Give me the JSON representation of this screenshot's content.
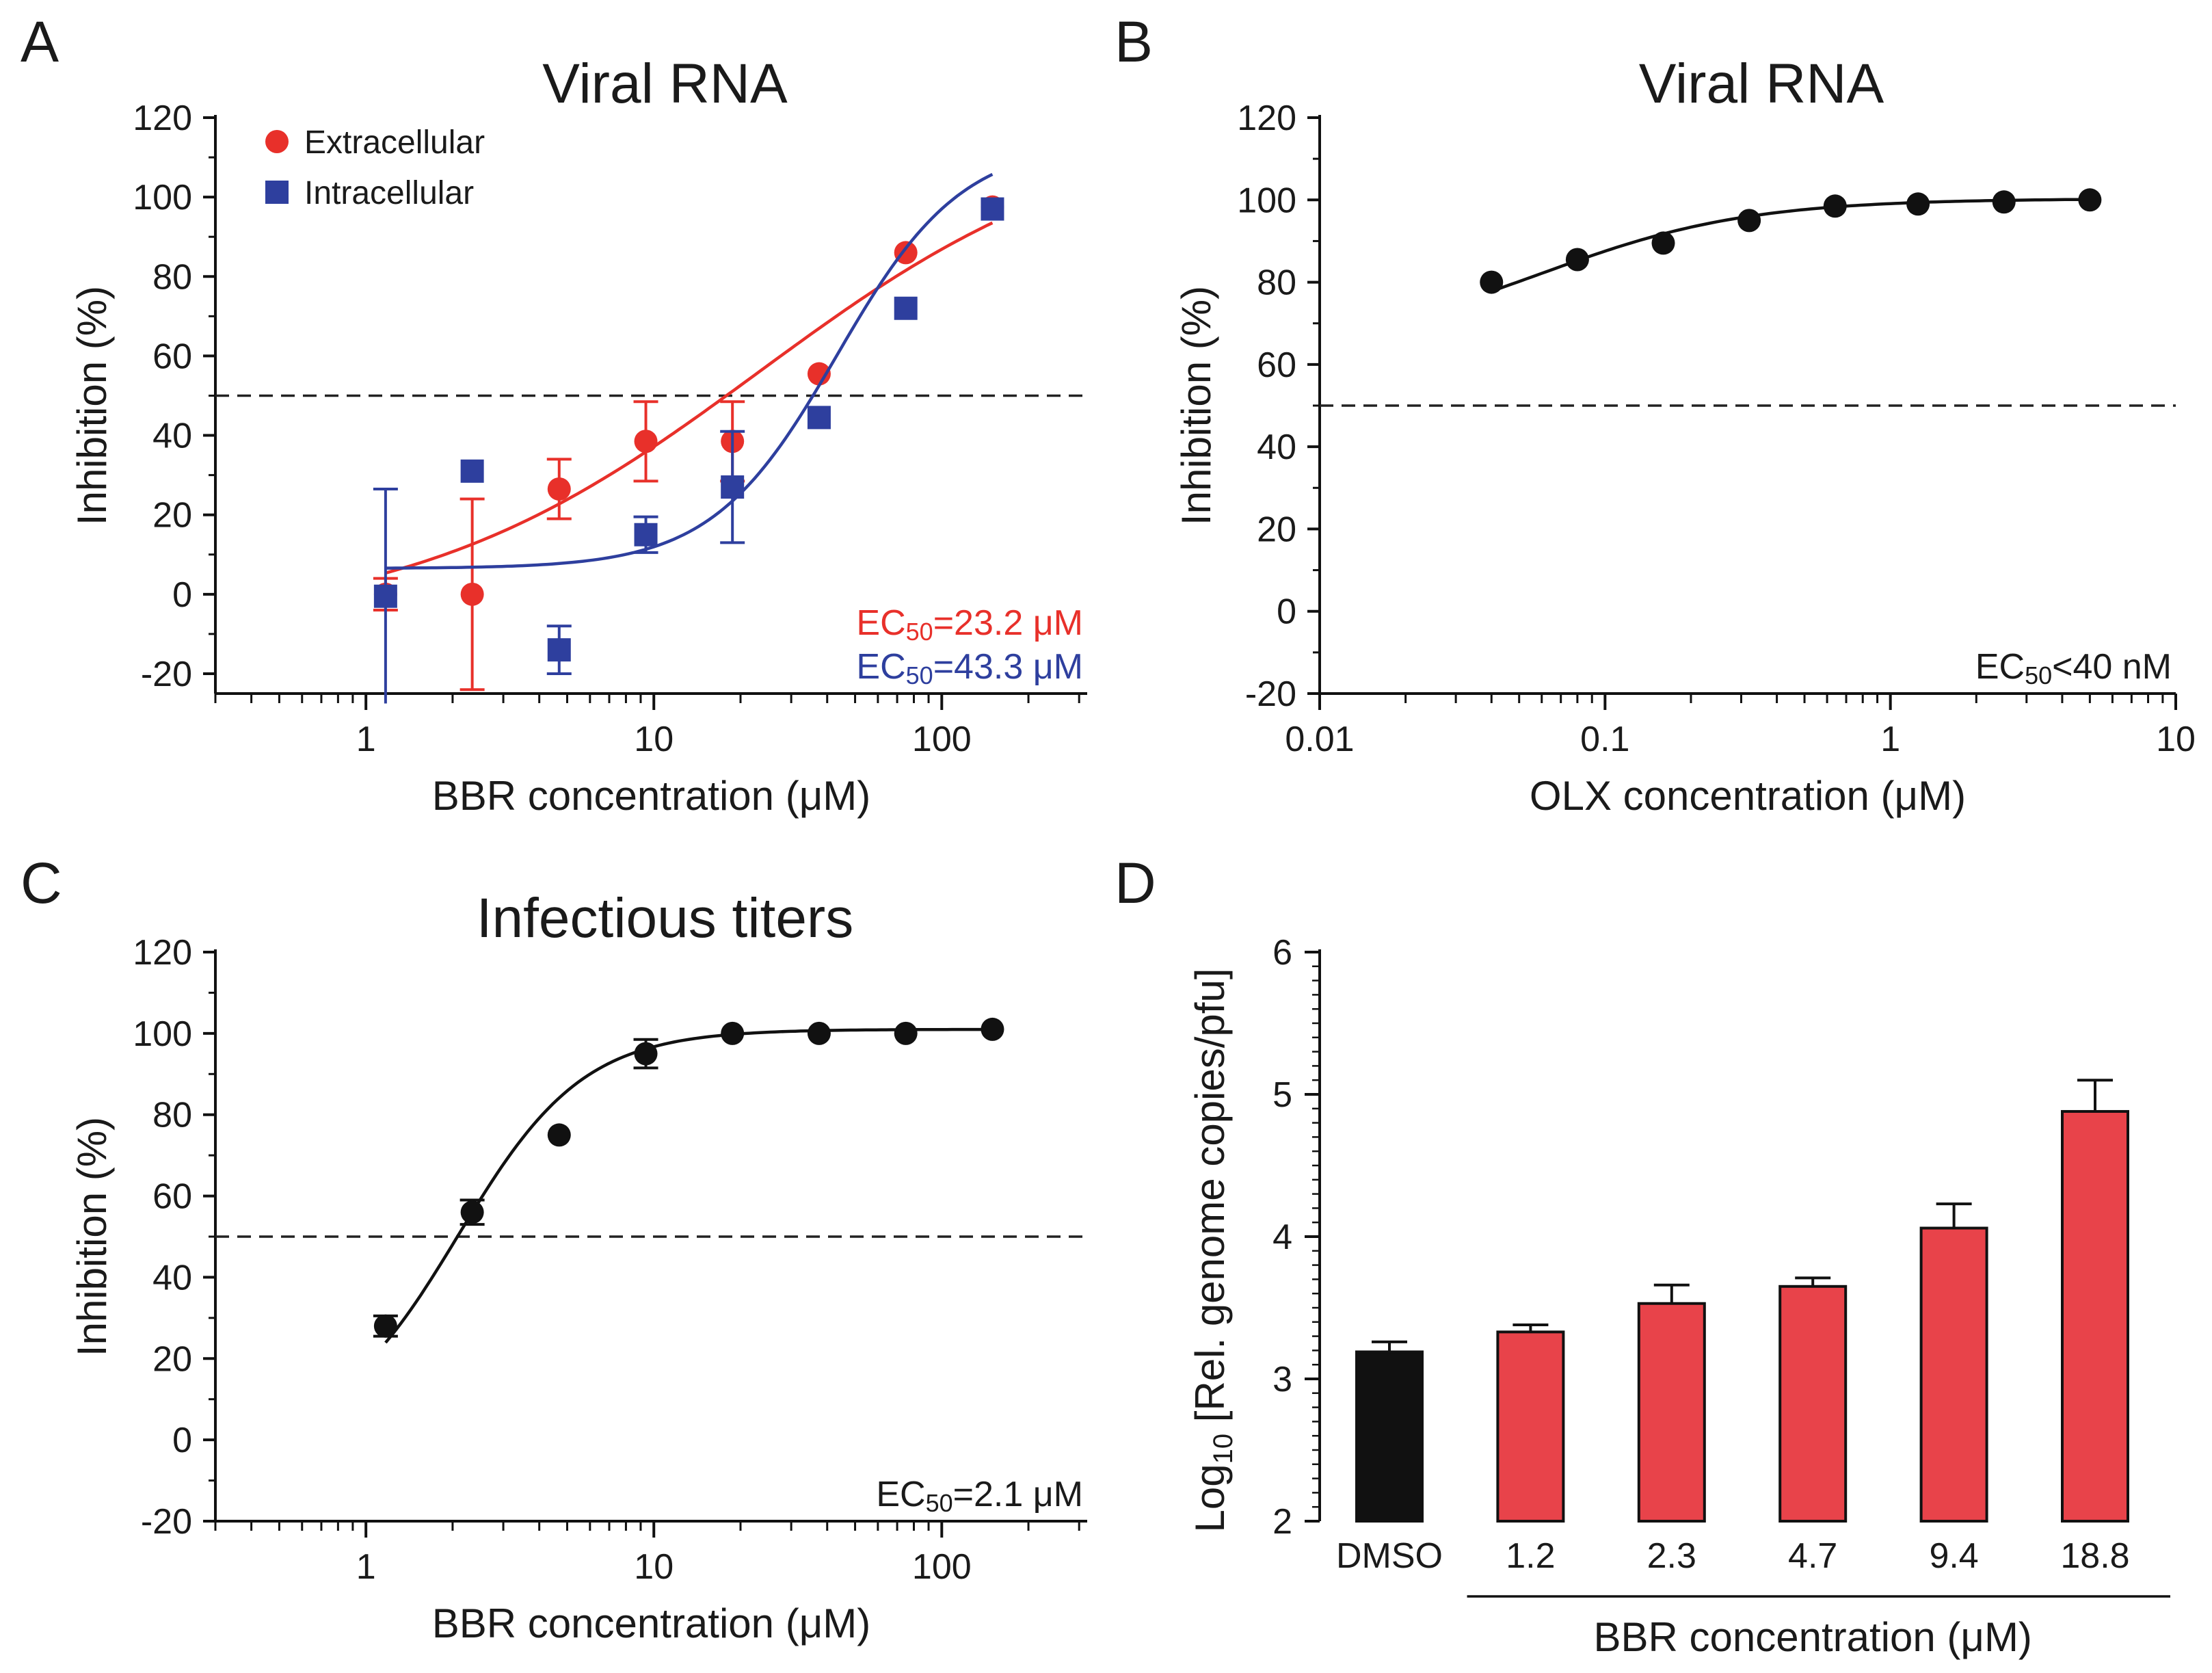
{
  "figure": {
    "panels": [
      "A",
      "B",
      "C",
      "D"
    ]
  },
  "chart_data": [
    {
      "id": "A",
      "type": "scatter",
      "panel_label": "A",
      "title": "Viral RNA",
      "xlabel": "BBR concentration (μM)",
      "ylabel": "Inhibition (%)",
      "x_scale": "log",
      "xlim": [
        0.3,
        320
      ],
      "ylim": [
        -25,
        120
      ],
      "x_ticks": [
        1,
        10,
        100
      ],
      "x_tick_labels": [
        "1",
        "10",
        "100"
      ],
      "y_ticks": [
        -20,
        0,
        20,
        40,
        60,
        80,
        100,
        120
      ],
      "y_tick_labels": [
        "-20",
        "0",
        "20",
        "40",
        "60",
        "80",
        "100",
        "120"
      ],
      "reference_line": 50,
      "legend_position": "top-left",
      "ec50_labels": [
        {
          "prefix": "EC",
          "sub": "50",
          "text": "=23.2 μM",
          "color": "#e8302a"
        },
        {
          "prefix": "EC",
          "sub": "50",
          "text": "=43.3 μM",
          "color": "#2e3f9e"
        }
      ],
      "series": [
        {
          "name": "Extracellular",
          "marker": "circle",
          "color": "#e8302a",
          "x": [
            1.17,
            2.34,
            4.69,
            9.38,
            18.75,
            37.5,
            75,
            150
          ],
          "y": [
            0,
            0,
            26.5,
            38.5,
            38.5,
            55.5,
            86,
            97.5
          ],
          "err": [
            4,
            24,
            7.5,
            10,
            10,
            0,
            0,
            0
          ],
          "fit": {
            "bottom": -8,
            "top": 120,
            "ec50": 23.2,
            "hill": 0.72
          }
        },
        {
          "name": "Intracellular",
          "marker": "square",
          "color": "#2e3f9e",
          "x": [
            1.17,
            2.34,
            4.69,
            9.38,
            18.75,
            37.5,
            75,
            150
          ],
          "y": [
            -0.5,
            31,
            -14,
            15,
            27,
            44.5,
            72,
            97
          ],
          "err": [
            27,
            0,
            6,
            4.5,
            14,
            0,
            0,
            0
          ],
          "fit": {
            "bottom": 6.5,
            "top": 114,
            "ec50": 43.3,
            "hill": 2.0
          }
        }
      ]
    },
    {
      "id": "B",
      "type": "scatter",
      "panel_label": "B",
      "title": "Viral RNA",
      "xlabel": "OLX concentration (μM)",
      "ylabel": "Inhibition (%)",
      "x_scale": "log",
      "xlim": [
        0.01,
        10
      ],
      "ylim": [
        -20,
        120
      ],
      "x_ticks": [
        0.01,
        0.1,
        1,
        10
      ],
      "x_tick_labels": [
        "0.01",
        "0.1",
        "1",
        "10"
      ],
      "y_ticks": [
        -20,
        0,
        20,
        40,
        60,
        80,
        100,
        120
      ],
      "y_tick_labels": [
        "-20",
        "0",
        "20",
        "40",
        "60",
        "80",
        "100",
        "120"
      ],
      "reference_line": 50,
      "ec50_labels": [
        {
          "prefix": "EC",
          "sub": "50",
          "text": "<40 nM",
          "color": "#1a1a1a"
        }
      ],
      "series": [
        {
          "name": "OLX",
          "marker": "circle",
          "color": "#111111",
          "x": [
            0.04,
            0.08,
            0.16,
            0.32,
            0.64,
            1.25,
            2.5,
            5
          ],
          "y": [
            80,
            85.5,
            89.5,
            95,
            98.5,
            99,
            99.5,
            100
          ],
          "err": [
            0,
            0,
            0,
            0,
            0,
            0,
            0,
            0
          ],
          "fit": {
            "bottom": 64,
            "top": 100.3,
            "ec50": 0.06,
            "hill": 1.2
          }
        }
      ]
    },
    {
      "id": "C",
      "type": "scatter",
      "panel_label": "C",
      "title": "Infectious titers",
      "xlabel": "BBR concentration (μM)",
      "ylabel": "Inhibition (%)",
      "x_scale": "log",
      "xlim": [
        0.3,
        320
      ],
      "ylim": [
        -20,
        120
      ],
      "x_ticks": [
        1,
        10,
        100
      ],
      "x_tick_labels": [
        "1",
        "10",
        "100"
      ],
      "y_ticks": [
        -20,
        0,
        20,
        40,
        60,
        80,
        100,
        120
      ],
      "y_tick_labels": [
        "-20",
        "0",
        "20",
        "40",
        "60",
        "80",
        "100",
        "120"
      ],
      "reference_line": 50,
      "ec50_labels": [
        {
          "prefix": "EC",
          "sub": "50",
          "text": "=2.1 μM",
          "color": "#1a1a1a"
        }
      ],
      "series": [
        {
          "name": "BBR",
          "marker": "circle",
          "color": "#111111",
          "x": [
            1.17,
            2.34,
            4.69,
            9.38,
            18.75,
            37.5,
            75,
            150
          ],
          "y": [
            28,
            56,
            75,
            95,
            100,
            100,
            100,
            101
          ],
          "err": [
            2.5,
            3,
            0,
            3.5,
            0,
            0,
            0,
            0
          ],
          "fit": {
            "bottom": 0,
            "top": 101,
            "ec50": 2.1,
            "hill": 2.0
          }
        }
      ]
    },
    {
      "id": "D",
      "type": "bar",
      "panel_label": "D",
      "ylabel_prefix": "Log",
      "ylabel_sub": "10",
      "ylabel_suffix": " [Rel. genome copies/pfu]",
      "xlabel": "BBR concentration (μM)",
      "ylim": [
        2,
        6
      ],
      "y_ticks": [
        2,
        3,
        4,
        5,
        6
      ],
      "y_tick_labels": [
        "2",
        "3",
        "4",
        "5",
        "6"
      ],
      "categories": [
        "DMSO",
        "1.2",
        "2.3",
        "4.7",
        "9.4",
        "18.8"
      ],
      "values": [
        3.19,
        3.33,
        3.53,
        3.65,
        4.06,
        4.88
      ],
      "errors": [
        0.07,
        0.05,
        0.13,
        0.06,
        0.17,
        0.22
      ],
      "colors": [
        "#111111",
        "#e8434a",
        "#e8434a",
        "#e8434a",
        "#e8434a",
        "#e8434a"
      ]
    }
  ]
}
